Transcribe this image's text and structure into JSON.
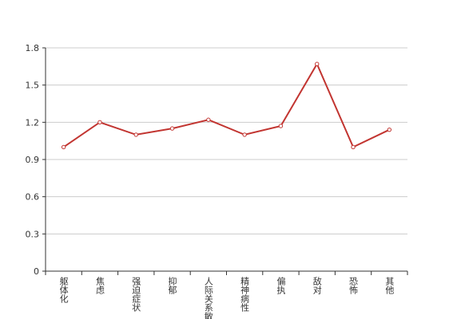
{
  "chart_data": {
    "type": "line",
    "categories": [
      "躯体化",
      "焦虑",
      "强迫症状",
      "抑郁",
      "人际关系敏感",
      "精神病性",
      "偏执",
      "敌对",
      "恐怖",
      "其他"
    ],
    "series": [
      {
        "color": "#c23531",
        "values": [
          1.0,
          1.2,
          1.1,
          1.15,
          1.22,
          1.1,
          1.17,
          1.67,
          1.0,
          1.14
        ]
      }
    ],
    "ylim": [
      0,
      1.8
    ],
    "yticks": [
      0,
      0.3,
      0.6,
      0.9,
      1.2,
      1.5,
      1.8
    ],
    "grid": true
  }
}
